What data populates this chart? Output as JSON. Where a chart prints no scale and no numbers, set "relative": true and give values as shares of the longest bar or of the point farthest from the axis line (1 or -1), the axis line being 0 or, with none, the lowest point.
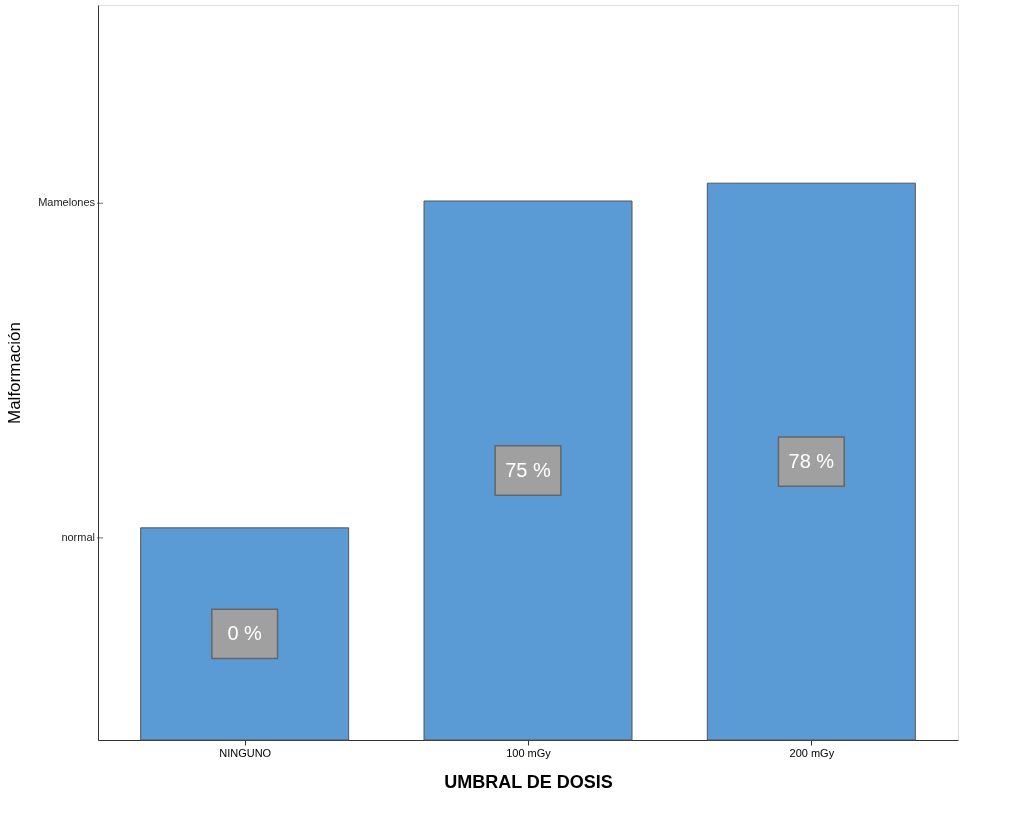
{
  "chart_data": {
    "type": "bar",
    "xlabel": "UMBRAL DE DOSIS",
    "ylabel": "Malformación",
    "categories": [
      "NINGUNO",
      "100 mGy",
      "200 mGy"
    ],
    "values": [
      0.381,
      0.968,
      1
    ],
    "color": "#5b9bd5",
    "relative": true,
    "grid": false,
    "annotations": [
      "0 %",
      "75 %",
      "78 %",
      "normal",
      "Mamelones"
    ]
  }
}
